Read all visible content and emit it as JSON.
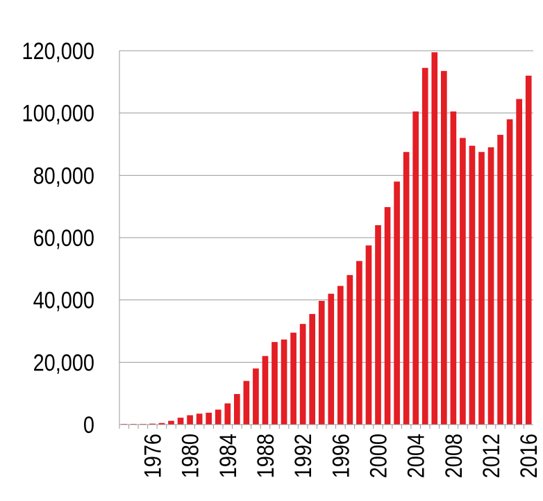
{
  "chart_data": {
    "type": "bar",
    "categories": [
      null,
      null,
      null,
      "1976",
      null,
      null,
      null,
      "1980",
      null,
      null,
      null,
      "1984",
      null,
      null,
      null,
      "1988",
      null,
      null,
      null,
      "1992",
      null,
      null,
      null,
      "1996",
      null,
      null,
      null,
      "2000",
      null,
      null,
      null,
      "2004",
      null,
      null,
      null,
      "2008",
      null,
      null,
      null,
      "2012",
      null,
      null,
      null,
      "2016"
    ],
    "values": [
      200,
      200,
      200,
      300,
      500,
      1200,
      2200,
      3000,
      3500,
      3800,
      4800,
      6800,
      9800,
      14000,
      18000,
      22000,
      26500,
      27300,
      29500,
      32300,
      35500,
      39700,
      42000,
      44500,
      48000,
      52500,
      57500,
      64000,
      69800,
      78000,
      87500,
      100500,
      114500,
      119500,
      113500,
      100500,
      92000,
      89500,
      87500,
      89000,
      93000,
      98000,
      104500,
      112000
    ],
    "color": "#e31e24",
    "ylim": [
      0,
      120000
    ],
    "yticks": [
      0,
      {
        "value": 20000,
        "label": "20,000"
      },
      {
        "value": 40000,
        "label": "40,000"
      },
      {
        "value": 60000,
        "label": "60,000"
      },
      {
        "value": 80000,
        "label": "80,000"
      },
      {
        "value": 100000,
        "label": "100,000"
      },
      {
        "value": 120000,
        "label": "120,000"
      }
    ],
    "grid": true
  }
}
